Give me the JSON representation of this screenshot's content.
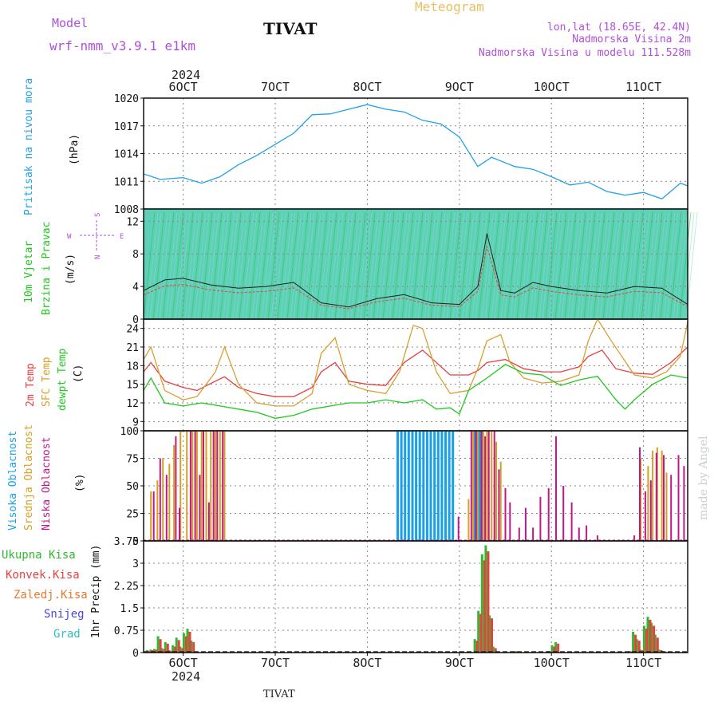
{
  "header": {
    "model_label": "Model",
    "model_name": "wrf-nmm_v3.9.1 e1km",
    "station": "TIVAT",
    "meteogram": "Meteogram",
    "lonlat": "lon,lat (18.65E, 42.4N)",
    "altitude": "Nadmorska Visina 2m",
    "model_altitude": "Nadmorska Visina u modelu 111.528m"
  },
  "footer": {
    "station": "TIVAT",
    "credit": "made by Angel"
  },
  "time_axis": {
    "year": "2024",
    "ticks": [
      "6OCT",
      "7OCT",
      "8OCT",
      "9OCT",
      "10OCT",
      "11OCT"
    ],
    "range_days": [
      5.57,
      11.48
    ]
  },
  "colors": {
    "pressure": "#22a0e8",
    "t2m": "#e84040",
    "sfc": "#d8a030",
    "dewpt": "#20c820",
    "high_cloud": "#18a0e8",
    "mid_cloud": "#d8a020",
    "low_cloud": "#c01888",
    "total_precip": "#30b830",
    "conv_precip": "#e84040",
    "frz_precip": "#e87830",
    "snow": "#4848e0",
    "hail": "#30c0c0",
    "label_purple": "#b050d8",
    "label_gold": "#e8c060"
  },
  "chart_data": [
    {
      "type": "line",
      "panel": "pressure",
      "ylabel_main": "Pritisak na nivou mora",
      "ylabel_unit": "(hPa)",
      "ylim": [
        1008,
        1020
      ],
      "yticks": [
        1008,
        1011,
        1014,
        1017,
        1020
      ],
      "ytick_labels": [
        "1008",
        "1011",
        "1014",
        "1017",
        "1020"
      ],
      "grid": true,
      "series": [
        {
          "x": [
            5.57,
            5.75,
            6.0,
            6.2,
            6.4,
            6.6,
            6.8,
            7.0,
            7.2,
            7.4,
            7.6,
            7.8,
            8.0,
            8.2,
            8.4,
            8.6,
            8.8,
            9.0,
            9.2,
            9.35,
            9.6,
            9.8,
            10.0,
            10.2,
            10.4,
            10.6,
            10.8,
            11.0,
            11.2,
            11.4,
            11.48
          ],
          "values": [
            1011.8,
            1011.2,
            1011.4,
            1010.8,
            1011.5,
            1012.8,
            1013.8,
            1015.0,
            1016.2,
            1018.2,
            1018.3,
            1018.8,
            1019.3,
            1018.8,
            1018.5,
            1017.6,
            1017.2,
            1015.8,
            1012.6,
            1013.6,
            1012.6,
            1012.3,
            1011.5,
            1010.6,
            1010.9,
            1009.9,
            1009.5,
            1009.8,
            1009.1,
            1010.8,
            1010.5
          ]
        }
      ]
    },
    {
      "type": "line",
      "panel": "wind",
      "ylabel_main": "10m Vjetar",
      "ylabel_sub": "Brzina i Pravac",
      "ylabel_unit": "(m/s)",
      "compass": {
        "n": "N",
        "s": "S",
        "w": "W",
        "e": "E"
      },
      "ylim": [
        0,
        13.5
      ],
      "yticks": [
        0,
        4,
        8,
        12
      ],
      "ytick_labels": [
        "0",
        "4",
        "8",
        "12"
      ],
      "grid": true,
      "series": [
        {
          "x": [
            5.57,
            5.8,
            6.0,
            6.3,
            6.6,
            6.9,
            7.2,
            7.5,
            7.8,
            8.1,
            8.4,
            8.7,
            9.0,
            9.2,
            9.3,
            9.45,
            9.6,
            9.8,
            10.0,
            10.3,
            10.6,
            10.9,
            11.2,
            11.48
          ],
          "values": [
            3.5,
            4.8,
            5.0,
            4.2,
            3.8,
            4.0,
            4.5,
            2.0,
            1.5,
            2.5,
            3.0,
            2.0,
            1.8,
            4.0,
            10.5,
            3.5,
            3.2,
            4.5,
            4.0,
            3.5,
            3.2,
            4.0,
            3.8,
            1.8
          ]
        }
      ]
    },
    {
      "type": "line",
      "panel": "temperature",
      "ylabels": [
        "2m Temp",
        "SFC Temp",
        "dewpt Temp"
      ],
      "ylabel_unit": "(C)",
      "ylim": [
        7.5,
        25.5
      ],
      "yticks": [
        9,
        12,
        15,
        18,
        21,
        24
      ],
      "ytick_labels": [
        "9",
        "12",
        "15",
        "18",
        "21",
        "24"
      ],
      "grid": true,
      "series": [
        {
          "name": "2m Temp",
          "x": [
            5.57,
            5.65,
            5.8,
            6.0,
            6.15,
            6.35,
            6.45,
            6.6,
            6.8,
            7.0,
            7.2,
            7.4,
            7.5,
            7.65,
            7.8,
            8.0,
            8.2,
            8.4,
            8.6,
            8.9,
            9.1,
            9.2,
            9.3,
            9.5,
            9.7,
            9.9,
            10.1,
            10.3,
            10.4,
            10.55,
            10.7,
            10.9,
            11.1,
            11.3,
            11.48
          ],
          "values": [
            17,
            18.5,
            15.5,
            14.5,
            14,
            15.5,
            16.2,
            14.5,
            13.5,
            13,
            13,
            14.5,
            17,
            18.5,
            15.5,
            15,
            14.8,
            18.5,
            20.5,
            16.5,
            16.5,
            17.2,
            18.5,
            19,
            17.5,
            17,
            17,
            17.8,
            19.5,
            20.5,
            17.5,
            16.8,
            16.6,
            18.5,
            21
          ]
        },
        {
          "name": "SFC Temp",
          "x": [
            5.57,
            5.65,
            5.8,
            6.0,
            6.15,
            6.35,
            6.45,
            6.6,
            6.8,
            7.0,
            7.2,
            7.4,
            7.5,
            7.65,
            7.8,
            8.0,
            8.2,
            8.35,
            8.5,
            8.6,
            8.75,
            8.9,
            9.1,
            9.2,
            9.3,
            9.45,
            9.55,
            9.7,
            9.9,
            10.1,
            10.3,
            10.4,
            10.5,
            10.65,
            10.9,
            11.1,
            11.25,
            11.4,
            11.48
          ],
          "values": [
            19,
            21,
            14,
            12.5,
            13,
            17,
            21,
            15,
            12,
            11.5,
            11.5,
            13.5,
            20,
            22.5,
            15,
            14,
            13.5,
            17,
            24.5,
            24,
            17,
            13.5,
            14,
            17.5,
            22,
            23,
            18.5,
            16,
            15.2,
            15.5,
            16.5,
            22,
            25.5,
            22,
            16.5,
            16,
            17,
            19.5,
            25
          ]
        },
        {
          "name": "dewpt Temp",
          "x": [
            5.57,
            5.65,
            5.8,
            6.0,
            6.2,
            6.4,
            6.6,
            6.8,
            7.0,
            7.2,
            7.4,
            7.6,
            7.8,
            8.0,
            8.2,
            8.4,
            8.6,
            8.75,
            8.9,
            9.0,
            9.1,
            9.3,
            9.5,
            9.7,
            9.9,
            10.1,
            10.3,
            10.5,
            10.7,
            10.8,
            10.9,
            11.1,
            11.3,
            11.48
          ],
          "values": [
            14,
            16,
            12,
            11.5,
            12,
            11.5,
            11,
            10.5,
            9.5,
            10,
            11,
            11.5,
            12,
            12,
            12.5,
            12,
            12.5,
            11,
            11.2,
            10.2,
            14,
            16,
            18.2,
            16.8,
            16.5,
            14.8,
            15.7,
            16.3,
            12.5,
            11,
            12.5,
            15,
            16.5,
            16
          ]
        }
      ]
    },
    {
      "type": "bar",
      "panel": "cloud",
      "ylabels": [
        "Visoka Oblacnost",
        "Srednja Oblacnost",
        "Niska Oblacnost"
      ],
      "ylabel_unit": "(%)",
      "ylim": [
        0,
        100
      ],
      "yticks": [
        0,
        25,
        50,
        75,
        100
      ],
      "ytick_labels": [
        "0",
        "25",
        "50",
        "75",
        "100"
      ],
      "grid": true,
      "series": [
        {
          "name": "Visoka Oblacnost",
          "x": [
            8.33,
            8.37,
            8.41,
            8.45,
            8.49,
            8.53,
            8.57,
            8.61,
            8.65,
            8.69,
            8.73,
            8.77,
            8.81,
            8.85,
            8.89,
            8.93,
            9.17,
            9.19,
            9.21,
            9.23,
            9.25
          ],
          "values": [
            100,
            100,
            100,
            100,
            100,
            100,
            100,
            100,
            100,
            100,
            100,
            100,
            100,
            100,
            100,
            100,
            100,
            100,
            100,
            100,
            100
          ]
        },
        {
          "name": "Srednja Oblacnost",
          "x": [
            5.65,
            5.72,
            5.78,
            5.85,
            5.9,
            5.97,
            6.04,
            6.1,
            6.15,
            6.2,
            6.25,
            6.3,
            6.35,
            6.4,
            6.45,
            9.1,
            9.15,
            9.2,
            9.26,
            9.3,
            9.35,
            9.4,
            9.45,
            10.97,
            11.05,
            11.1,
            11.15,
            11.2,
            11.25
          ],
          "values": [
            45,
            55,
            75,
            70,
            87,
            100,
            100,
            100,
            100,
            100,
            100,
            100,
            100,
            100,
            100,
            38,
            100,
            100,
            100,
            100,
            100,
            90,
            72,
            75,
            68,
            82,
            85,
            82,
            62
          ]
        },
        {
          "name": "Niska Oblacnost",
          "x": [
            5.68,
            5.75,
            5.82,
            5.92,
            5.96,
            6.08,
            6.13,
            6.18,
            6.22,
            6.28,
            6.33,
            6.37,
            6.43,
            8.99,
            9.13,
            9.18,
            9.24,
            9.28,
            9.32,
            9.38,
            9.43,
            9.5,
            9.55,
            9.65,
            9.72,
            9.8,
            9.88,
            9.97,
            10.05,
            10.13,
            10.22,
            10.3,
            10.38,
            10.5,
            10.9,
            10.96,
            11.02,
            11.08,
            11.14,
            11.22,
            11.3,
            11.38,
            11.44
          ],
          "values": [
            45,
            75,
            60,
            95,
            30,
            100,
            100,
            60,
            100,
            35,
            100,
            100,
            100,
            22,
            100,
            100,
            100,
            95,
            100,
            100,
            65,
            48,
            35,
            12,
            30,
            12,
            40,
            48,
            95,
            50,
            35,
            12,
            14,
            5,
            5,
            85,
            45,
            55,
            80,
            78,
            60,
            78,
            68
          ]
        }
      ]
    },
    {
      "type": "bar",
      "panel": "precipitation",
      "legend": [
        "Ukupna Kisa",
        "Konvek.Kisa",
        "Zaledj.Kisa",
        "Snijeg",
        "Grad"
      ],
      "ylabel": "1hr Precip (mm)",
      "ylim": [
        0,
        3.75
      ],
      "yticks": [
        0,
        0.75,
        1.5,
        2.25,
        3,
        3.75
      ],
      "ytick_labels": [
        "0",
        "0.75",
        "1.5",
        "2.25",
        "3",
        "3.75"
      ],
      "grid": true,
      "series": [
        {
          "name": "Ukupna Kisa",
          "x": [
            5.62,
            5.66,
            5.7,
            5.74,
            5.78,
            5.82,
            5.86,
            5.9,
            5.94,
            5.98,
            6.02,
            6.06,
            6.1,
            9.18,
            9.22,
            9.26,
            9.3,
            9.34,
            9.38,
            9.62,
            9.98,
            10.02,
            10.06,
            10.86,
            10.9,
            10.94,
            10.98,
            11.02,
            11.06,
            11.1,
            11.14,
            11.18,
            11.22
          ],
          "values": [
            0.08,
            0.1,
            0.12,
            0.55,
            0.15,
            0.35,
            0.08,
            0.25,
            0.5,
            0.2,
            0.65,
            0.8,
            0.4,
            0.45,
            1.4,
            3.3,
            3.6,
            1.25,
            0.2,
            0.05,
            0.05,
            0.25,
            0.35,
            0.05,
            0.7,
            0.45,
            0.1,
            0.9,
            1.2,
            1.0,
            0.6,
            0.1,
            0.05
          ]
        },
        {
          "name": "Konvek.Kisa",
          "x": [
            5.62,
            5.66,
            5.7,
            5.74,
            5.78,
            5.82,
            5.86,
            5.9,
            5.94,
            5.98,
            6.02,
            6.06,
            6.1,
            9.18,
            9.22,
            9.26,
            9.3,
            9.34,
            9.38,
            9.62,
            9.98,
            10.02,
            10.06,
            10.86,
            10.9,
            10.94,
            10.98,
            11.02,
            11.06,
            11.1,
            11.14,
            11.18,
            11.22
          ],
          "values": [
            0.06,
            0.08,
            0.1,
            0.45,
            0.12,
            0.3,
            0.06,
            0.2,
            0.42,
            0.15,
            0.55,
            0.7,
            0.35,
            0.4,
            1.3,
            3.1,
            3.4,
            1.15,
            0.15,
            0.04,
            0.04,
            0.2,
            0.3,
            0.04,
            0.6,
            0.4,
            0.08,
            0.8,
            1.1,
            0.9,
            0.5,
            0.08,
            0.04
          ]
        }
      ]
    }
  ]
}
